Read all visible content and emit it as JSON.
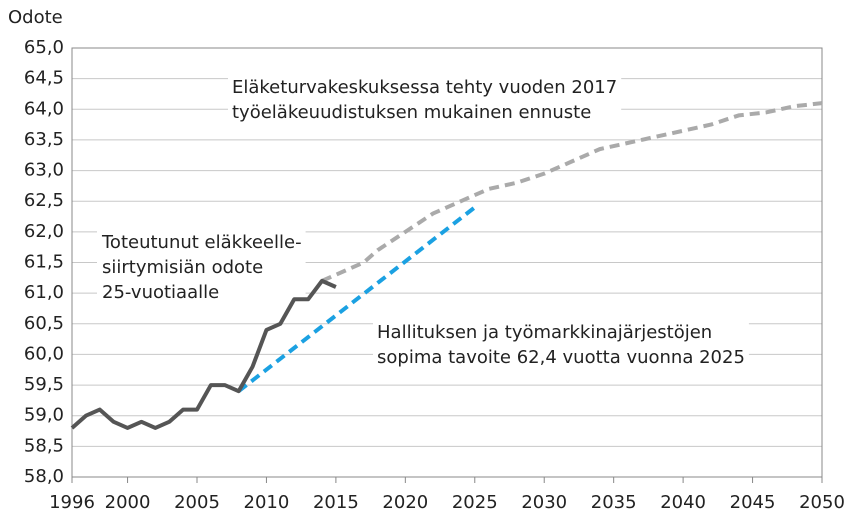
{
  "chart_data": {
    "type": "line",
    "y_label": "Odote",
    "xlim": [
      1996,
      2050
    ],
    "xticks": [
      1996,
      2000,
      2005,
      2010,
      2015,
      2020,
      2025,
      2030,
      2035,
      2040,
      2045,
      2050
    ],
    "ylim": [
      58,
      65
    ],
    "yticks": [
      {
        "value": 58,
        "label": "58,0"
      },
      {
        "value": 58.5,
        "label": "58,5"
      },
      {
        "value": 59,
        "label": "59,0"
      },
      {
        "value": 59.5,
        "label": "59,5"
      },
      {
        "value": 60,
        "label": "60,0"
      },
      {
        "value": 60.5,
        "label": "60,5"
      },
      {
        "value": 61,
        "label": "61,0"
      },
      {
        "value": 61.5,
        "label": "61,5"
      },
      {
        "value": 62,
        "label": "62,0"
      },
      {
        "value": 62.5,
        "label": "62,5"
      },
      {
        "value": 63,
        "label": "63,0"
      },
      {
        "value": 63.5,
        "label": "63,5"
      },
      {
        "value": 64,
        "label": "64,0"
      },
      {
        "value": 64.5,
        "label": "64,5"
      },
      {
        "value": 65,
        "label": "65,0"
      }
    ],
    "grid": true,
    "series": [
      {
        "color": "#aaaaaa",
        "dashed": true,
        "x": [
          2014,
          2015,
          2016,
          2017,
          2018,
          2019,
          2020,
          2021,
          2022,
          2023,
          2024,
          2025,
          2026,
          2028,
          2030,
          2032,
          2034,
          2036,
          2038,
          2040,
          2042,
          2044,
          2046,
          2048,
          2050
        ],
        "values": [
          61.2,
          61.3,
          61.4,
          61.5,
          61.7,
          61.85,
          62.0,
          62.15,
          62.3,
          62.4,
          62.5,
          62.6,
          62.7,
          62.8,
          62.95,
          63.15,
          63.35,
          63.45,
          63.55,
          63.65,
          63.75,
          63.9,
          63.95,
          64.05,
          64.1
        ]
      },
      {
        "color": "#1ba1e2",
        "dashed": true,
        "x": [
          2008,
          2025
        ],
        "values": [
          59.4,
          62.4
        ]
      },
      {
        "color": "#555555",
        "dashed": false,
        "x": [
          1996,
          1997,
          1998,
          1999,
          2000,
          2001,
          2002,
          2003,
          2004,
          2005,
          2006,
          2007,
          2008,
          2009,
          2010,
          2011,
          2012,
          2013,
          2014,
          2015
        ],
        "values": [
          58.8,
          59.0,
          59.1,
          58.9,
          58.8,
          58.9,
          58.8,
          58.9,
          59.1,
          59.1,
          59.5,
          59.5,
          59.4,
          59.8,
          60.4,
          60.5,
          60.9,
          60.9,
          61.2,
          61.1
        ]
      }
    ],
    "annotations": [
      {
        "lines": [
          "Eläketurvakeskuksessa tehty vuoden 2017",
          "työeläkeuudistuksen mukainen ennuste"
        ]
      },
      {
        "lines": [
          "Toteutunut eläkkeelle-",
          "siirtymisiän odote",
          "25-vuotiaalle"
        ]
      },
      {
        "lines": [
          "Hallituksen ja työmarkkinajärjestöjen",
          "sopima tavoite 62,4 vuotta vuonna 2025"
        ]
      }
    ]
  }
}
